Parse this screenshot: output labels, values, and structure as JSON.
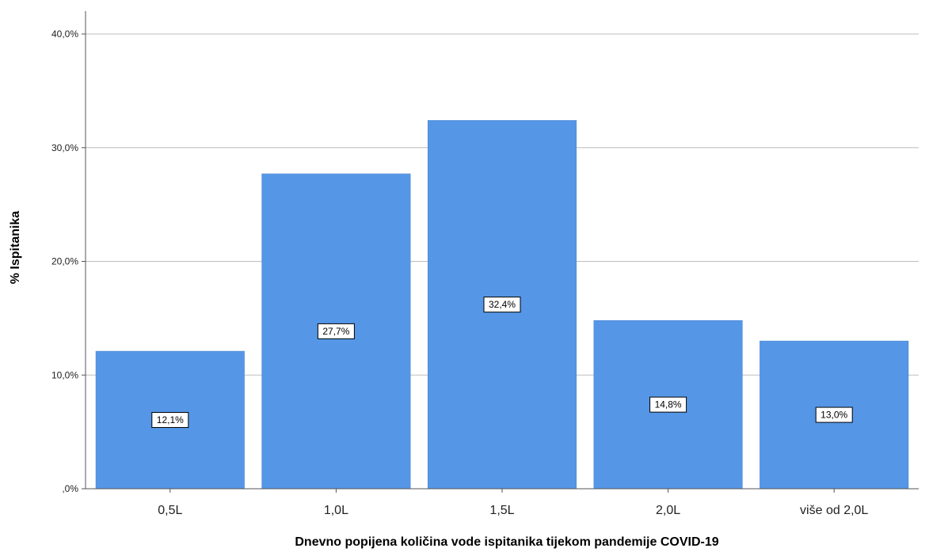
{
  "chart_data": {
    "type": "bar",
    "categories": [
      "0,5L",
      "1,0L",
      "1,5L",
      "2,0L",
      "više od 2,0L"
    ],
    "values": [
      12.1,
      27.7,
      32.4,
      14.8,
      13.0
    ],
    "data_labels": [
      "12,1%",
      "27,7%",
      "32,4%",
      "14,8%",
      "13,0%"
    ],
    "xlabel": "Dnevno popijena količina vode ispitanika tijekom pandemije COVID-19",
    "ylabel": "% Ispitanika",
    "ylim": [
      0,
      40
    ],
    "yticks": [
      0,
      10,
      20,
      30,
      40
    ],
    "ytick_labels": [
      ",0%",
      "10,0%",
      "20,0%",
      "30,0%",
      "40,0%"
    ],
    "grid": true,
    "bar_color": "#5596e6"
  }
}
